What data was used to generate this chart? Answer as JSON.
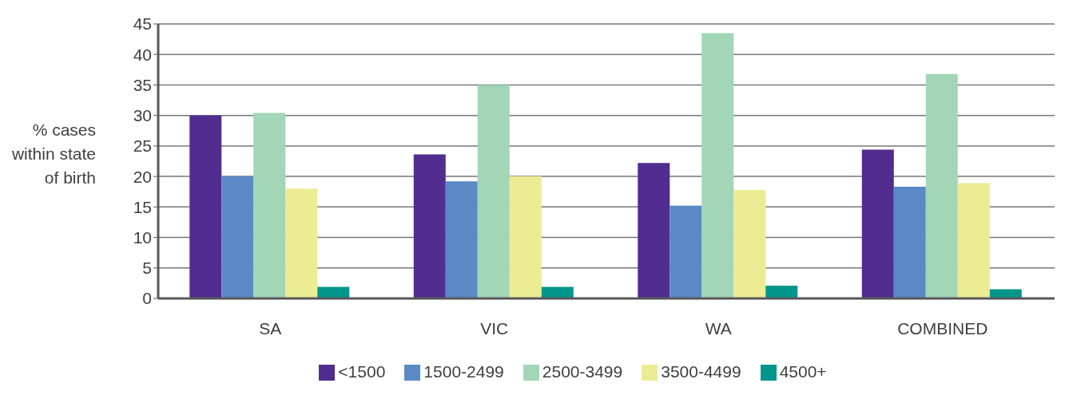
{
  "chart_data": {
    "type": "bar",
    "ylabel": "% cases within state of birth",
    "categories": [
      "SA",
      "VIC",
      "WA",
      "COMBINED"
    ],
    "series": [
      {
        "name": "<1500",
        "color": "#512d8f",
        "values": [
          30,
          23.6,
          22.2,
          24.4
        ]
      },
      {
        "name": "1500-2499",
        "color": "#5b89c6",
        "values": [
          20,
          19.2,
          15.2,
          18.3
        ]
      },
      {
        "name": "2500-3499",
        "color": "#a2d6b6",
        "values": [
          30.4,
          35,
          43.5,
          36.8
        ]
      },
      {
        "name": "3500-4499",
        "color": "#ecec95",
        "values": [
          18,
          20,
          17.8,
          18.9
        ]
      },
      {
        "name": "4500+",
        "color": "#00968c",
        "values": [
          1.9,
          1.9,
          2.1,
          1.5
        ]
      }
    ],
    "ylim": [
      0,
      45
    ],
    "yticks": [
      0,
      5,
      10,
      15,
      20,
      25,
      30,
      35,
      40,
      45
    ],
    "grid": "y",
    "legend": "bottom"
  }
}
